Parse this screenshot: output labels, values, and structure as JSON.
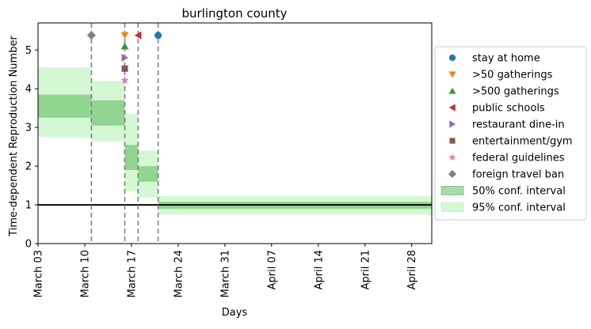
{
  "chart_data": {
    "type": "line",
    "title": "burlington county",
    "xlabel": "Days",
    "ylabel": "Time-dependent Reproduction Number",
    "x_ticks": [
      {
        "day": 0,
        "label": "March 03"
      },
      {
        "day": 7,
        "label": "March 10"
      },
      {
        "day": 14,
        "label": "March 17"
      },
      {
        "day": 21,
        "label": "March 24"
      },
      {
        "day": 28,
        "label": "March 31"
      },
      {
        "day": 35,
        "label": "April 07"
      },
      {
        "day": 42,
        "label": "April 14"
      },
      {
        "day": 49,
        "label": "April 21"
      },
      {
        "day": 56,
        "label": "April 28"
      }
    ],
    "xlim_days_since_march_03": [
      0,
      59
    ],
    "ylim": [
      0,
      5.7
    ],
    "y_ticks": [
      0,
      1,
      2,
      3,
      4,
      5
    ],
    "reference_line": {
      "y": 1,
      "color": "#000000"
    },
    "segments": [
      {
        "x_start": 0,
        "x_end": 8,
        "ci50": [
          3.25,
          3.85
        ],
        "ci95": [
          2.75,
          4.55
        ]
      },
      {
        "x_start": 8,
        "x_end": 13,
        "ci50": [
          3.05,
          3.7
        ],
        "ci95": [
          2.65,
          4.2
        ]
      },
      {
        "x_start": 13,
        "x_end": 15,
        "ci50": [
          1.9,
          2.55
        ],
        "ci95": [
          1.35,
          3.35
        ]
      },
      {
        "x_start": 15,
        "x_end": 18,
        "ci50": [
          1.6,
          2.0
        ],
        "ci95": [
          1.2,
          2.4
        ]
      },
      {
        "x_start": 18,
        "x_end": 59,
        "ci50": [
          0.9,
          1.08
        ],
        "ci95": [
          0.75,
          1.23
        ]
      }
    ],
    "interventions": [
      {
        "name": "stay at home",
        "x": 18,
        "y": 5.38,
        "marker": "circle",
        "color": "#1f77b4"
      },
      {
        "name": ">50 gatherings",
        "x": 13,
        "y": 5.38,
        "marker": "triangle-down",
        "color": "#ff7f0e"
      },
      {
        "name": ">500 gatherings",
        "x": 13,
        "y": 5.1,
        "marker": "triangle-up",
        "color": "#2ca02c"
      },
      {
        "name": "public schools",
        "x": 15,
        "y": 5.38,
        "marker": "triangle-left",
        "color": "#d62728"
      },
      {
        "name": "restaurant dine-in",
        "x": 13,
        "y": 4.8,
        "marker": "triangle-right",
        "color": "#9467bd"
      },
      {
        "name": "entertainment/gym",
        "x": 13,
        "y": 4.52,
        "marker": "square",
        "color": "#8c564b"
      },
      {
        "name": "federal guidelines",
        "x": 13,
        "y": 4.22,
        "marker": "star",
        "color": "#e377c2"
      },
      {
        "name": "foreign travel ban",
        "x": 8,
        "y": 5.38,
        "marker": "diamond",
        "color": "#7f7f7f"
      }
    ],
    "vertical_lines_days": [
      8,
      13,
      15,
      18
    ],
    "legend": {
      "placement": "right",
      "ci50_label": "50% conf. interval",
      "ci95_label": "95% conf. interval"
    },
    "colors": {
      "ci50_fill": "#2ca02c",
      "ci95_fill": "#90ee90",
      "vline": "#7f7f7f"
    }
  }
}
